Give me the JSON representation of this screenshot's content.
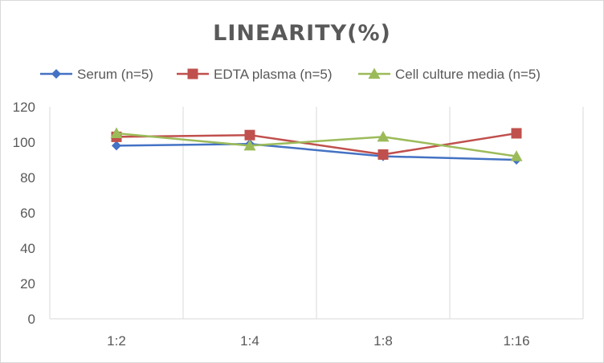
{
  "chart_data": {
    "type": "line",
    "title": "LINEARITY(%)",
    "xlabel": "",
    "ylabel": "",
    "categories": [
      "1:2",
      "1:4",
      "1:8",
      "1:16"
    ],
    "ylim": [
      0,
      120
    ],
    "yticks": [
      0,
      20,
      40,
      60,
      80,
      100,
      120
    ],
    "grid": "vertical",
    "legend": "top",
    "series": [
      {
        "name": "Serum (n=5)",
        "values": [
          98,
          99,
          92,
          90
        ],
        "color": "#4472c4",
        "marker": "diamond"
      },
      {
        "name": "EDTA plasma (n=5)",
        "values": [
          103,
          104,
          93,
          105
        ],
        "color": "#c0504d",
        "marker": "square"
      },
      {
        "name": "Cell culture media (n=5)",
        "values": [
          105,
          98,
          103,
          92
        ],
        "color": "#9bbb59",
        "marker": "triangle"
      }
    ]
  }
}
